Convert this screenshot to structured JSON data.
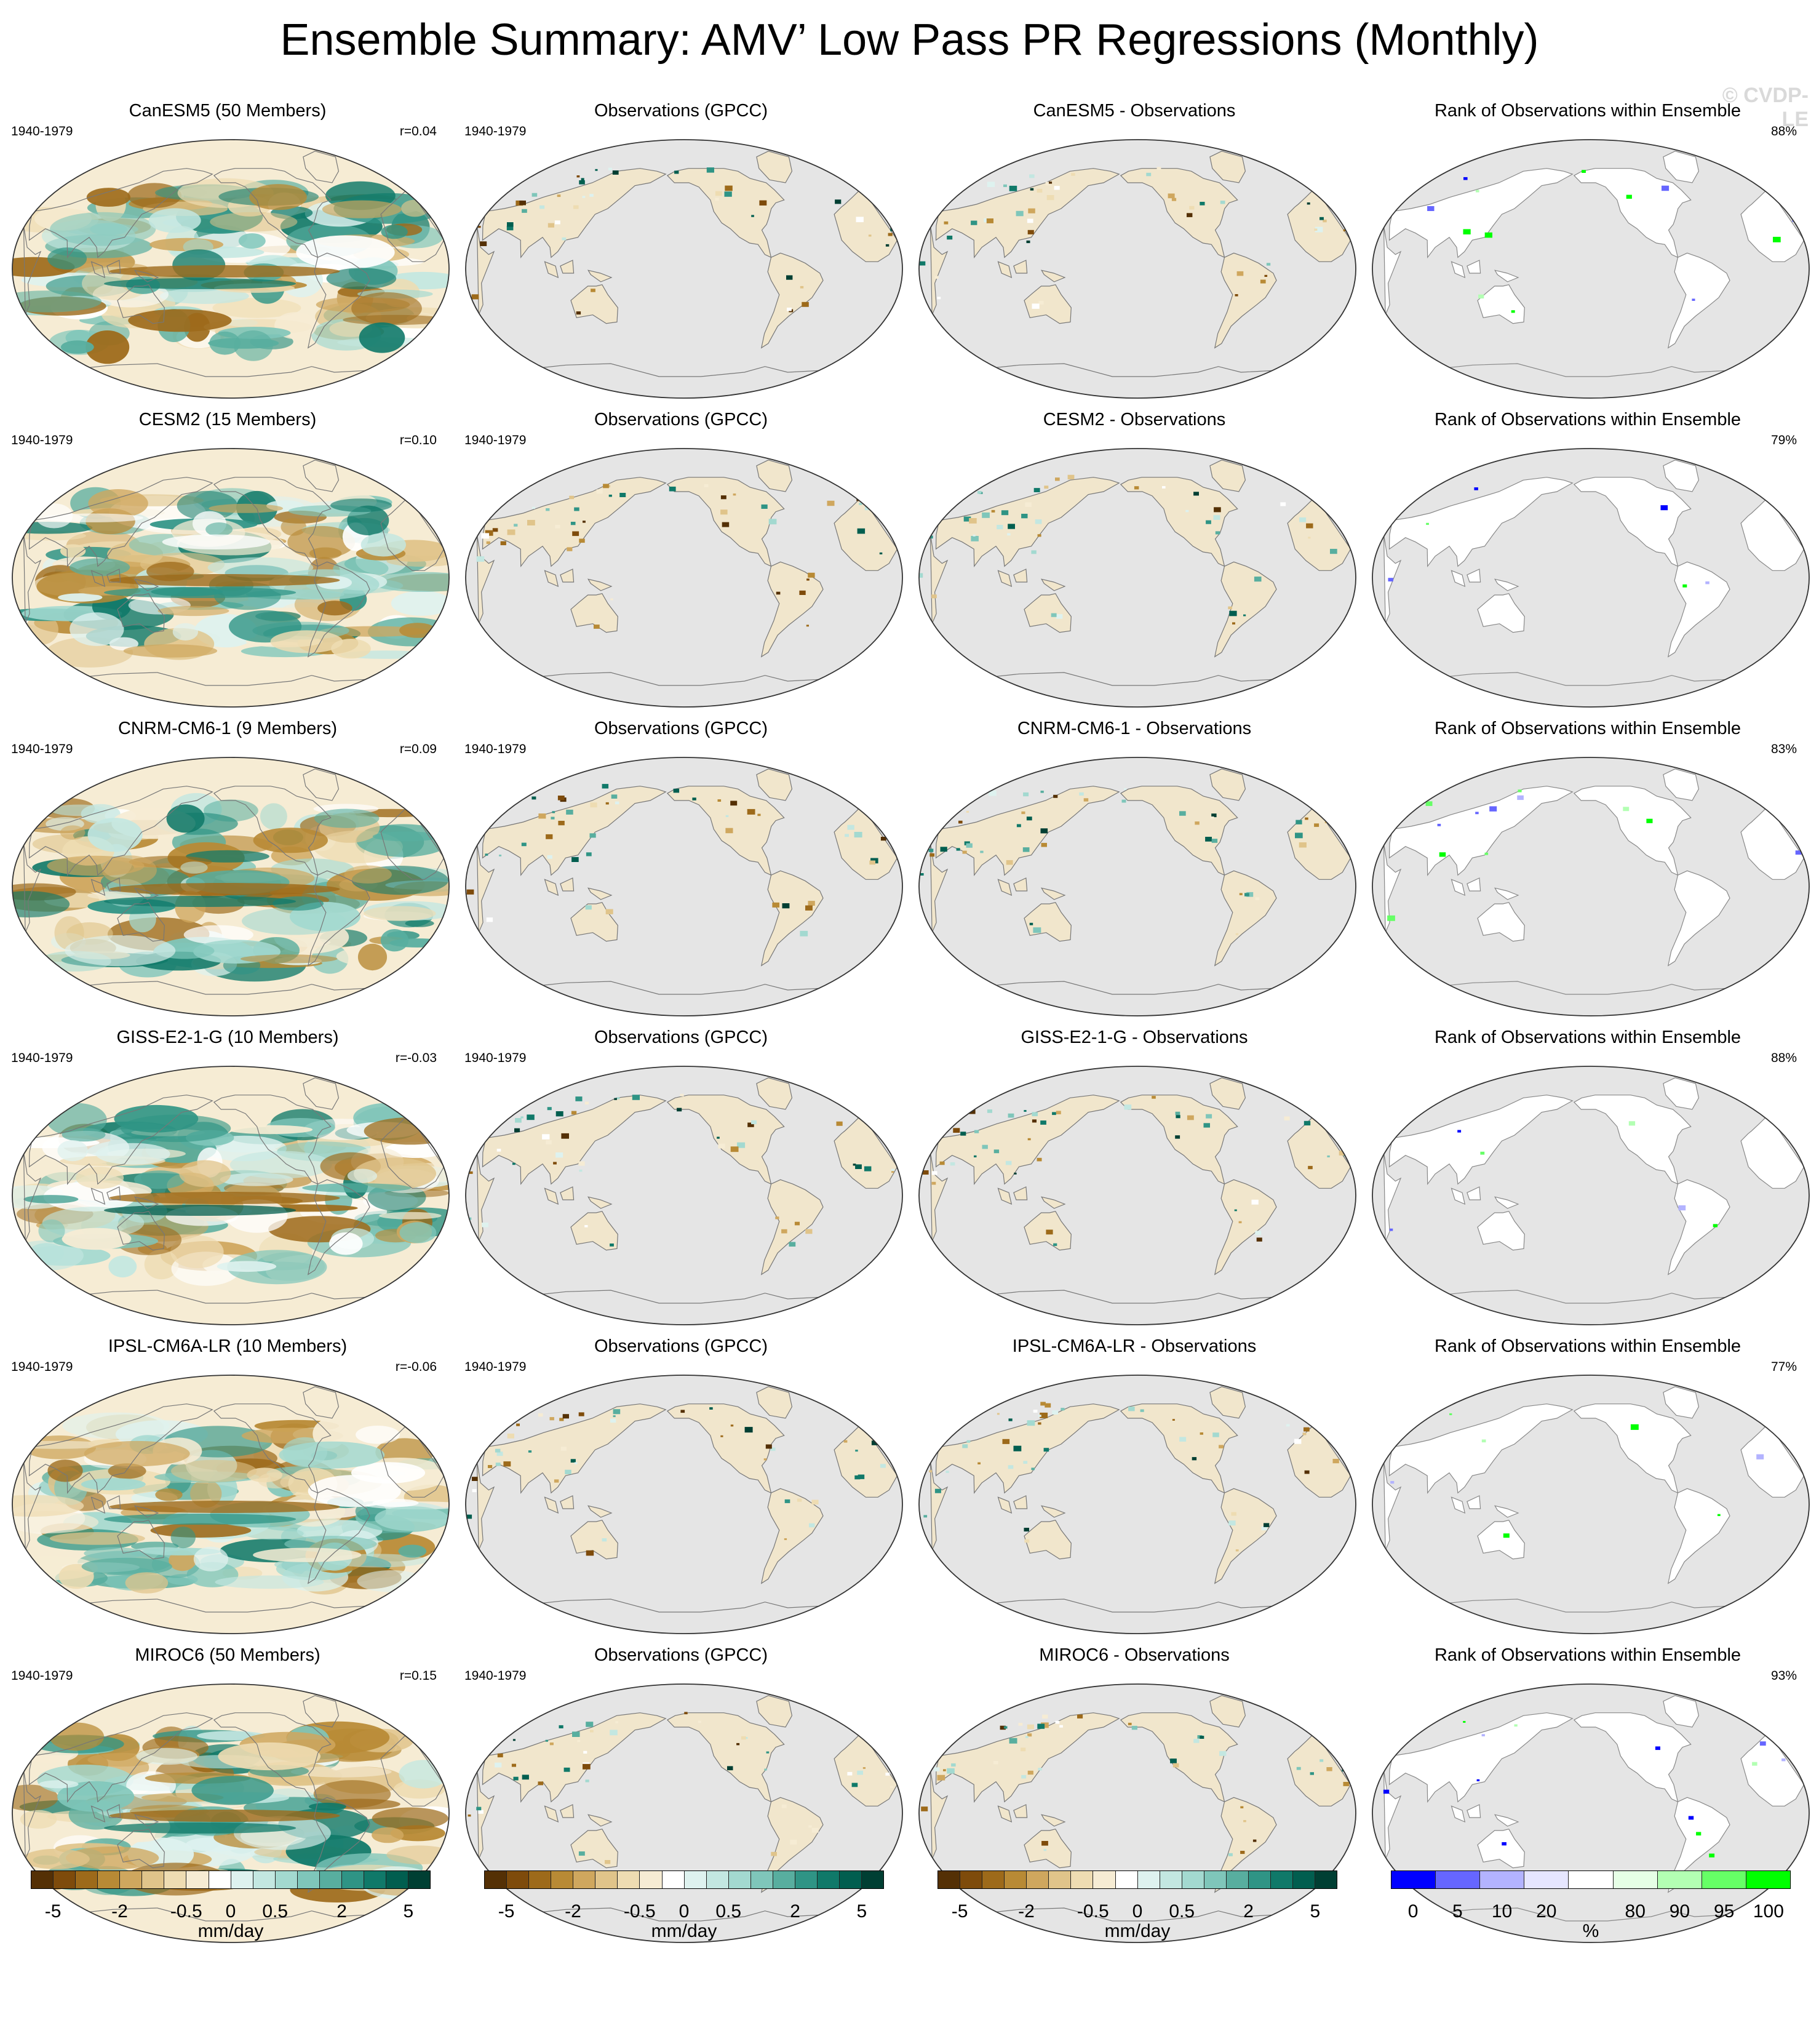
{
  "title": "Ensemble Summary: AMV’ Low Pass PR Regressions (Monthly)",
  "watermark": "© CVDP-LE",
  "colors": {
    "ocean_obs": "#e5e5e5",
    "diverging": [
      "#543005",
      "#7e4b0b",
      "#9d6a1a",
      "#b88a35",
      "#cfa75e",
      "#e0c48a",
      "#eedcb2",
      "#f6ecd4",
      "#ffffff",
      "#def2ef",
      "#c3e7e1",
      "#a3d9d0",
      "#7fc6ba",
      "#58ae9f",
      "#2f9485",
      "#107969",
      "#015e4f",
      "#003f33"
    ],
    "rank": [
      "#0000ff",
      "#6666ff",
      "#b3b3ff",
      "#e6e6ff",
      "#ffffff",
      "#e6ffe6",
      "#b3ffb3",
      "#66ff66",
      "#00ff00"
    ]
  },
  "rows": [
    {
      "model": {
        "title": "CanESM5 (50 Members)",
        "period": "1940-1979",
        "stat": "r=0.04"
      },
      "obs": {
        "title": "Observations (GPCC)",
        "period": "1940-1979"
      },
      "diff": {
        "title": "CanESM5 - Observations"
      },
      "rank": {
        "title": "Rank of Observations within Ensemble",
        "stat": "88%"
      }
    },
    {
      "model": {
        "title": "CESM2 (15 Members)",
        "period": "1940-1979",
        "stat": "r=0.10"
      },
      "obs": {
        "title": "Observations (GPCC)",
        "period": "1940-1979"
      },
      "diff": {
        "title": "CESM2 - Observations"
      },
      "rank": {
        "title": "Rank of Observations within Ensemble",
        "stat": "79%"
      }
    },
    {
      "model": {
        "title": "CNRM-CM6-1 (9 Members)",
        "period": "1940-1979",
        "stat": "r=0.09"
      },
      "obs": {
        "title": "Observations (GPCC)",
        "period": "1940-1979"
      },
      "diff": {
        "title": "CNRM-CM6-1 - Observations"
      },
      "rank": {
        "title": "Rank of Observations within Ensemble",
        "stat": "83%"
      }
    },
    {
      "model": {
        "title": "GISS-E2-1-G (10 Members)",
        "period": "1940-1979",
        "stat": "r=-0.03"
      },
      "obs": {
        "title": "Observations (GPCC)",
        "period": "1940-1979"
      },
      "diff": {
        "title": "GISS-E2-1-G - Observations"
      },
      "rank": {
        "title": "Rank of Observations within Ensemble",
        "stat": "88%"
      }
    },
    {
      "model": {
        "title": "IPSL-CM6A-LR (10 Members)",
        "period": "1940-1979",
        "stat": "r=-0.06"
      },
      "obs": {
        "title": "Observations (GPCC)",
        "period": "1940-1979"
      },
      "diff": {
        "title": "IPSL-CM6A-LR - Observations"
      },
      "rank": {
        "title": "Rank of Observations within Ensemble",
        "stat": "77%"
      }
    },
    {
      "model": {
        "title": "MIROC6 (50 Members)",
        "period": "1940-1979",
        "stat": "r=0.15"
      },
      "obs": {
        "title": "Observations (GPCC)",
        "period": "1940-1979"
      },
      "diff": {
        "title": "MIROC6 - Observations"
      },
      "rank": {
        "title": "Rank of Observations within Ensemble",
        "stat": "93%"
      }
    }
  ],
  "colorbars": [
    {
      "name": "model",
      "palette": "diverging",
      "ticks": [
        "-5",
        "-2",
        "-0.5",
        "0",
        "0.5",
        "2",
        "5"
      ],
      "tick_positions": [
        0.0556,
        0.2222,
        0.3889,
        0.5,
        0.6111,
        0.7778,
        0.9444
      ],
      "unit": "mm/day"
    },
    {
      "name": "obs",
      "palette": "diverging",
      "ticks": [
        "-5",
        "-2",
        "-0.5",
        "0",
        "0.5",
        "2",
        "5"
      ],
      "tick_positions": [
        0.0556,
        0.2222,
        0.3889,
        0.5,
        0.6111,
        0.7778,
        0.9444
      ],
      "unit": "mm/day"
    },
    {
      "name": "diff",
      "palette": "diverging",
      "ticks": [
        "-5",
        "-2",
        "-0.5",
        "0",
        "0.5",
        "2",
        "5"
      ],
      "tick_positions": [
        0.0556,
        0.2222,
        0.3889,
        0.5,
        0.6111,
        0.7778,
        0.9444
      ],
      "unit": "mm/day"
    },
    {
      "name": "rank",
      "palette": "rank",
      "ticks": [
        "0",
        "5",
        "10",
        "20",
        "80",
        "90",
        "95",
        "100"
      ],
      "tick_positions": [
        0.0556,
        0.1667,
        0.2778,
        0.3889,
        0.6111,
        0.7222,
        0.8333,
        0.9444
      ],
      "unit": "%"
    }
  ]
}
